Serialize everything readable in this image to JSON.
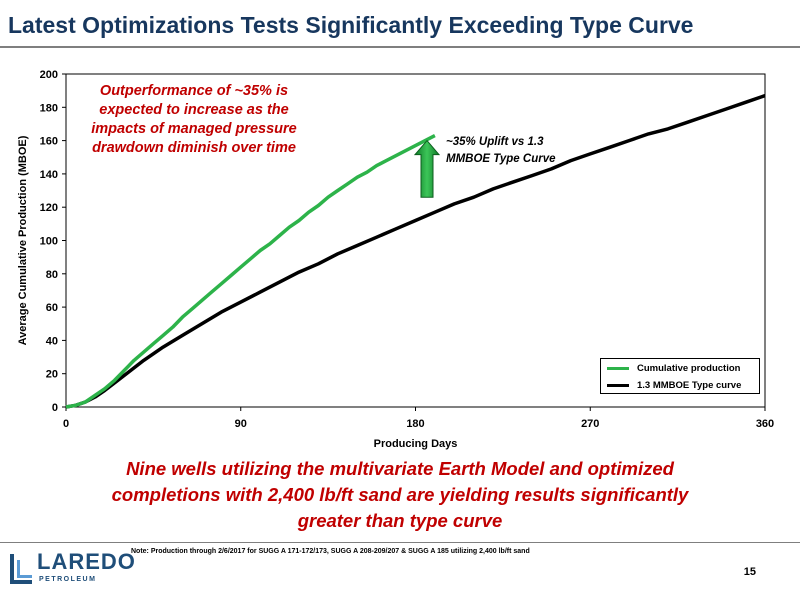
{
  "slide": {
    "title": "Latest Optimizations Tests Significantly Exceeding Type Curve",
    "callout_red": "Outperformance of ~35% is expected to increase as the impacts of managed pressure drawdown diminish over time",
    "callout_uplift": "~35% Uplift vs 1.3 MMBOE Type Curve",
    "bottom_message": "Nine wells utilizing the multivariate Earth Model and optimized completions with 2,400 lb/ft sand are yielding results significantly greater than type curve",
    "footnote": "Note: Production through 2/6/2017 for SUGG A 171-172/173, SUGG A 208-209/207 & SUGG A 185 utilizing 2,400 lb/ft sand",
    "page_number": "15",
    "logo_name": "LAREDO",
    "logo_sub": "PETROLEUM",
    "colors": {
      "title": "#17375e",
      "accent_red": "#c00000",
      "green": "#2db34a",
      "arrow_green": "#1a9a36",
      "black": "#000000"
    }
  },
  "chart_data": {
    "type": "line",
    "xlabel": "Producing Days",
    "ylabel": "Average Cumulative Production (MBOE)",
    "xlim": [
      0,
      360
    ],
    "ylim": [
      0,
      200
    ],
    "xticks": [
      0,
      90,
      180,
      270,
      360
    ],
    "yticks": [
      0,
      20,
      40,
      60,
      80,
      100,
      120,
      140,
      160,
      180,
      200
    ],
    "grid": false,
    "legend_position": "bottom-right",
    "series": [
      {
        "name": "Cumulative production",
        "color": "#2db34a",
        "x": [
          0,
          5,
          10,
          15,
          20,
          25,
          30,
          35,
          40,
          45,
          50,
          55,
          60,
          65,
          70,
          75,
          80,
          85,
          90,
          95,
          100,
          105,
          110,
          115,
          120,
          125,
          130,
          135,
          140,
          145,
          150,
          155,
          160,
          165,
          170,
          175,
          180,
          185,
          190
        ],
        "y": [
          0,
          1,
          3,
          7,
          11,
          16,
          22,
          28,
          33,
          38,
          43,
          48,
          54,
          59,
          64,
          69,
          74,
          79,
          84,
          89,
          94,
          98,
          103,
          108,
          112,
          117,
          121,
          126,
          130,
          134,
          138,
          141,
          145,
          148,
          151,
          154,
          157,
          160,
          163
        ]
      },
      {
        "name": "1.3 MMBOE Type curve",
        "color": "#000000",
        "x": [
          0,
          5,
          10,
          15,
          20,
          30,
          40,
          50,
          60,
          70,
          80,
          90,
          100,
          110,
          120,
          130,
          140,
          150,
          160,
          170,
          180,
          190,
          200,
          210,
          220,
          230,
          240,
          250,
          260,
          270,
          280,
          290,
          300,
          310,
          320,
          330,
          340,
          350,
          360
        ],
        "y": [
          0,
          1,
          3,
          6,
          10,
          19,
          28,
          36,
          43,
          50,
          57,
          63,
          69,
          75,
          81,
          86,
          92,
          97,
          102,
          107,
          112,
          117,
          122,
          126,
          131,
          135,
          139,
          143,
          148,
          152,
          156,
          160,
          164,
          167,
          171,
          175,
          179,
          183,
          187
        ]
      }
    ]
  }
}
